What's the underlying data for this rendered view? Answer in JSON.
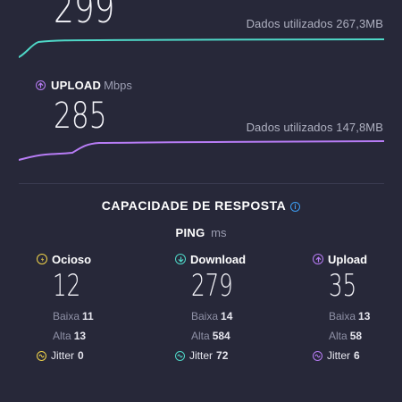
{
  "download": {
    "value": "299",
    "data_used": "Dados utilizados 267,3MB",
    "color": "#4fd8c8"
  },
  "upload": {
    "label": "UPLOAD",
    "unit": "Mbps",
    "value": "285",
    "data_used": "Dados utilizados 147,8MB",
    "color": "#b77cf5"
  },
  "responsiveness": {
    "title": "CAPACIDADE DE RESPOSTA",
    "ping_label": "PING",
    "ping_unit": "ms",
    "columns": [
      {
        "label": "Ocioso",
        "icon": "idle-icon",
        "color": "#f0d34a",
        "value": "12",
        "low_label": "Baixa",
        "low": "11",
        "high_label": "Alta",
        "high": "13",
        "jitter_label": "Jitter",
        "jitter": "0"
      },
      {
        "label": "Download",
        "icon": "download-icon",
        "color": "#4fd8c8",
        "value": "279",
        "low_label": "Baixa",
        "low": "14",
        "high_label": "Alta",
        "high": "584",
        "jitter_label": "Jitter",
        "jitter": "72"
      },
      {
        "label": "Upload",
        "icon": "upload-icon",
        "color": "#b77cf5",
        "value": "35",
        "low_label": "Baixa",
        "low": "13",
        "high_label": "Alta",
        "high": "58",
        "jitter_label": "Jitter",
        "jitter": "6"
      }
    ]
  }
}
